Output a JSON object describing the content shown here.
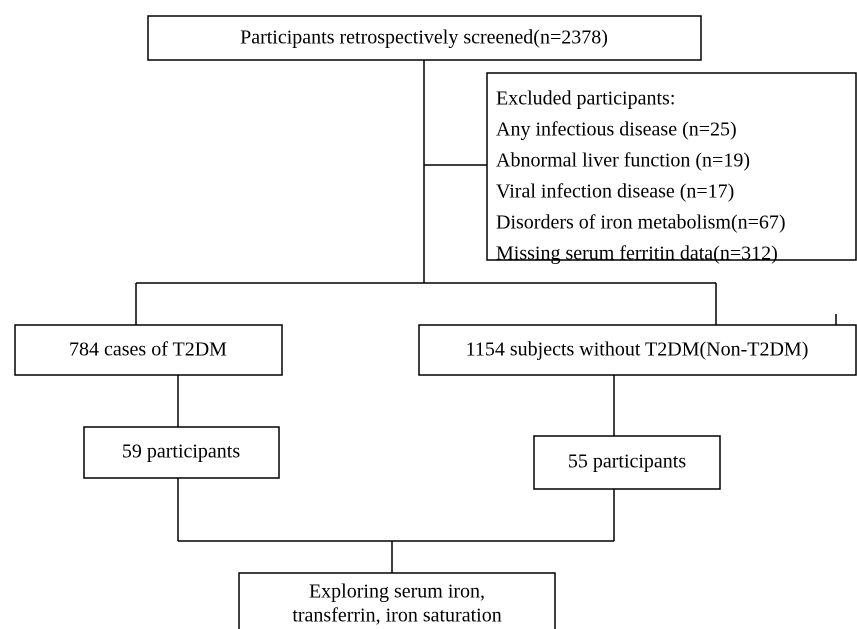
{
  "nodes": [
    {
      "label": "Participants retrospectively screened(n=2378)"
    },
    {
      "label": "784 cases of T2DM"
    },
    {
      "label": "1154 subjects without T2DM(Non-T2DM)"
    },
    {
      "label": "59 participants"
    },
    {
      "label": "55 participants"
    },
    {
      "lines": [
        "Exploring serum iron,",
        "transferrin, iron saturation"
      ]
    }
  ],
  "excluded": {
    "title": "Excluded participants:",
    "items": [
      "Any infectious disease (n=25)",
      "Abnormal liver function (n=19)",
      "Viral infection disease (n=17)",
      "Disorders of iron metabolism(n=67)",
      "Missing serum ferritin data(n=312)"
    ]
  }
}
